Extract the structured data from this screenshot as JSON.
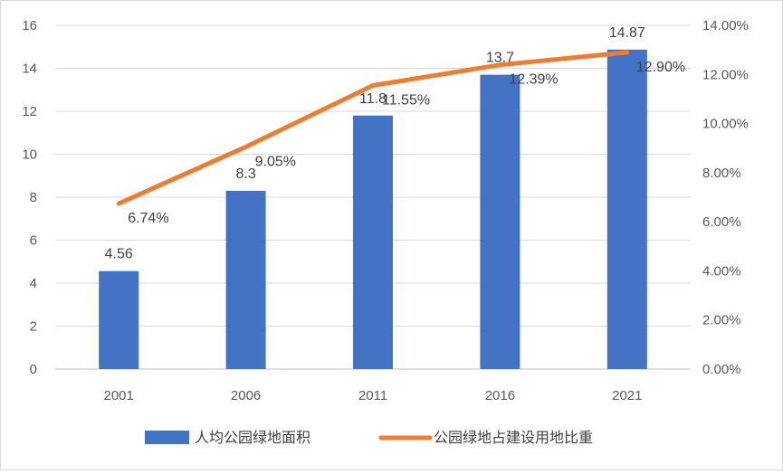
{
  "chart_data": {
    "type": "bar",
    "categories": [
      "2001",
      "2006",
      "2011",
      "2016",
      "2021"
    ],
    "series": [
      {
        "name": "人均公园绿地面积",
        "type": "bar",
        "axis": "left",
        "values": [
          4.56,
          8.3,
          11.8,
          13.7,
          14.87
        ],
        "labels": [
          "4.56",
          "8.3",
          "11.8",
          "13.7",
          "14.87"
        ],
        "color": "#4472C4"
      },
      {
        "name": "公园绿地占建设用地比重",
        "type": "line",
        "axis": "right",
        "values": [
          6.74,
          9.05,
          11.55,
          12.39,
          12.9
        ],
        "labels": [
          "6.74%",
          "9.05%",
          "11.55%",
          "12.39%",
          "12.90%"
        ],
        "color": "#ED7D31"
      }
    ],
    "y_left": {
      "min": 0,
      "max": 16,
      "ticks": [
        "0",
        "2",
        "4",
        "6",
        "8",
        "10",
        "12",
        "14",
        "16"
      ]
    },
    "y_right": {
      "min": 0,
      "max": 14,
      "ticks": [
        "0.00%",
        "2.00%",
        "4.00%",
        "6.00%",
        "8.00%",
        "10.00%",
        "12.00%",
        "14.00%"
      ]
    },
    "grid": true,
    "legend": "bottom"
  }
}
